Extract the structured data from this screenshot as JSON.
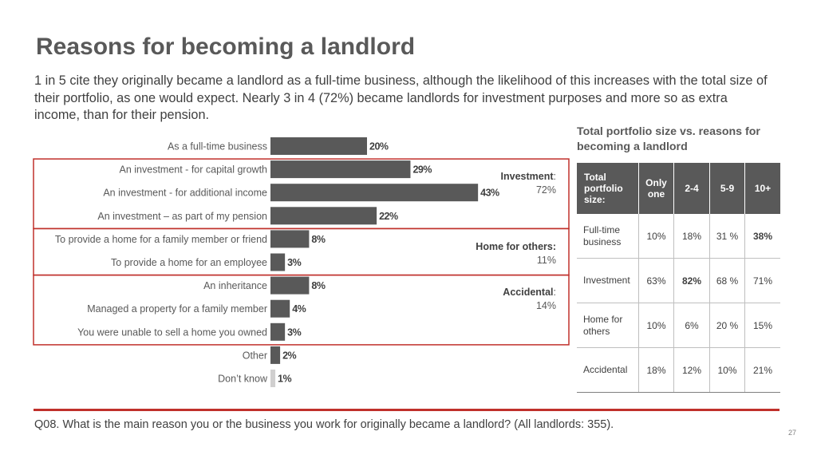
{
  "title": "Reasons for becoming a landlord",
  "intro": "1 in 5 cite they originally became a landlord as a full-time business, although the likelihood of this increases with the total size of their portfolio, as one would expect. Nearly 3 in 4 (72%) became landlords for investment purposes and more so as extra income, than for their pension.",
  "colors": {
    "bar": "#595959",
    "bar_dontknow": "#d0cfcf",
    "group_box": "#c0302b",
    "table_header": "#595959"
  },
  "chart_data": {
    "type": "bar",
    "orientation": "horizontal",
    "categories": [
      "As a full-time business",
      "An investment - for capital growth",
      "An investment - for additional income",
      "An investment – as part of my pension",
      "To provide a home for a family member or friend",
      "To provide a home for an employee",
      "An inheritance",
      "Managed a property for a family member",
      "You were unable to sell a home you owned",
      "Other",
      "Don’t know"
    ],
    "values": [
      20,
      29,
      43,
      22,
      8,
      3,
      8,
      4,
      3,
      2,
      1
    ],
    "data_labels": [
      "20%",
      "29%",
      "43%",
      "22%",
      "8%",
      "3%",
      "8%",
      "4%",
      "3%",
      "2%",
      "1%"
    ],
    "groups": [
      {
        "name": "Investment",
        "value": "72%",
        "first": 1,
        "last": 3
      },
      {
        "name": "Home for others:",
        "value": "11%",
        "first": 4,
        "last": 5
      },
      {
        "name": "Accidental",
        "value": "14%",
        "first": 6,
        "last": 8
      }
    ],
    "grid": false
  },
  "table": {
    "title": "Total portfolio size vs. reasons for becoming a landlord",
    "header": [
      "Total portfolio size:",
      "Only one",
      "2-4",
      "5-9",
      "10+"
    ],
    "rows": [
      {
        "label": "Full-time business",
        "cells": [
          "10%",
          "18%",
          "31 %",
          "38%"
        ],
        "bold": [
          3
        ]
      },
      {
        "label": "Investment",
        "cells": [
          "63%",
          "82%",
          "68 %",
          "71%"
        ],
        "bold": [
          1
        ]
      },
      {
        "label": "Home for others",
        "cells": [
          "10%",
          "6%",
          "20 %",
          "15%"
        ],
        "bold": []
      },
      {
        "label": "Accidental",
        "cells": [
          "18%",
          "12%",
          "10%",
          "21%"
        ],
        "bold": []
      }
    ]
  },
  "footnote": "Q08. What is the main reason you or the business you work for originally became a landlord? (All landlords: 355).",
  "page_number": "27"
}
